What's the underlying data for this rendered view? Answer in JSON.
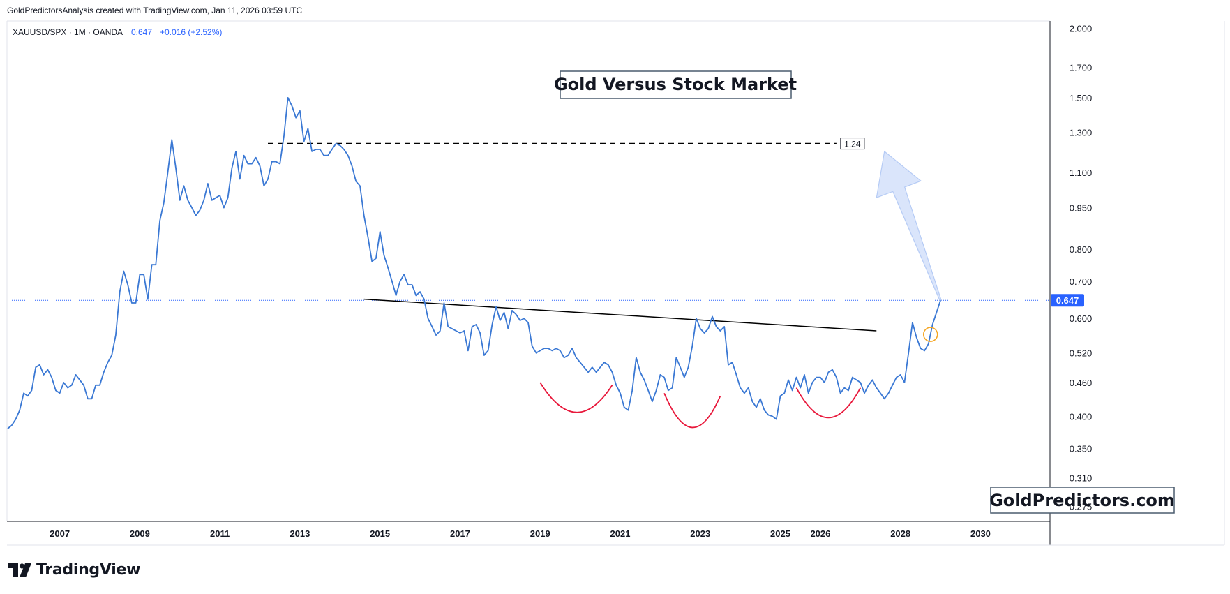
{
  "header": {
    "caption": "GoldPredictorsAnalysis created with TradingView.com, Jan 11, 2026 03:59 UTC"
  },
  "legend": {
    "symbol": "XAUUSD/SPX · 1M · OANDA",
    "last": "0.647",
    "change": "+0.016 (+2.52%)"
  },
  "title_box": "Gold Versus Stock Market",
  "watermark_box": "GoldPredictors.com",
  "footer": {
    "brand": "TradingView"
  },
  "colors": {
    "line": "#3a78d4",
    "neckline": "#000000",
    "arcs": "#e8193c",
    "target_line": "#000000",
    "price_tag": "#2962ff",
    "arrow_fill": "#d6e2fb",
    "arrow_stroke": "#b5cbf5",
    "circle": "#f5a623"
  },
  "chart_data": {
    "type": "line",
    "title": "Gold Versus Stock Market",
    "y_scale": "log",
    "ylim": [
      0.26,
      2.05
    ],
    "xlim": [
      2005.7,
      2031.7
    ],
    "x_ticks": [
      "2007",
      "2009",
      "2011",
      "2013",
      "2015",
      "2017",
      "2019",
      "2021",
      "2023",
      "2025",
      "2026",
      "2028",
      "2030"
    ],
    "x_tick_values": [
      2007,
      2009,
      2011,
      2013,
      2015,
      2017,
      2019,
      2021,
      2023,
      2025,
      2026,
      2028,
      2030
    ],
    "y_ticks": [
      "2.000",
      "1.700",
      "1.500",
      "1.300",
      "1.100",
      "0.950",
      "0.800",
      "0.700",
      "0.600",
      "0.520",
      "0.460",
      "0.400",
      "0.350",
      "0.310",
      "0.275"
    ],
    "y_tick_values": [
      2.0,
      1.7,
      1.5,
      1.3,
      1.1,
      0.95,
      0.8,
      0.7,
      0.6,
      0.52,
      0.46,
      0.4,
      0.35,
      0.31,
      0.275
    ],
    "current_value": 0.647,
    "current_label": "0.647",
    "series": [
      {
        "values": [
          [
            2005.7,
            0.38
          ],
          [
            2005.8,
            0.385
          ],
          [
            2005.9,
            0.395
          ],
          [
            2006.0,
            0.41
          ],
          [
            2006.1,
            0.44
          ],
          [
            2006.2,
            0.435
          ],
          [
            2006.3,
            0.445
          ],
          [
            2006.4,
            0.49
          ],
          [
            2006.5,
            0.495
          ],
          [
            2006.6,
            0.475
          ],
          [
            2006.7,
            0.485
          ],
          [
            2006.8,
            0.47
          ],
          [
            2006.9,
            0.445
          ],
          [
            2007.0,
            0.44
          ],
          [
            2007.1,
            0.46
          ],
          [
            2007.2,
            0.45
          ],
          [
            2007.3,
            0.455
          ],
          [
            2007.4,
            0.475
          ],
          [
            2007.5,
            0.465
          ],
          [
            2007.6,
            0.455
          ],
          [
            2007.7,
            0.43
          ],
          [
            2007.8,
            0.43
          ],
          [
            2007.9,
            0.455
          ],
          [
            2008.0,
            0.455
          ],
          [
            2008.1,
            0.48
          ],
          [
            2008.2,
            0.5
          ],
          [
            2008.3,
            0.515
          ],
          [
            2008.4,
            0.56
          ],
          [
            2008.5,
            0.67
          ],
          [
            2008.6,
            0.73
          ],
          [
            2008.7,
            0.69
          ],
          [
            2008.8,
            0.64
          ],
          [
            2008.9,
            0.64
          ],
          [
            2009.0,
            0.72
          ],
          [
            2009.1,
            0.72
          ],
          [
            2009.2,
            0.65
          ],
          [
            2009.3,
            0.75
          ],
          [
            2009.4,
            0.75
          ],
          [
            2009.5,
            0.9
          ],
          [
            2009.6,
            0.97
          ],
          [
            2009.7,
            1.1
          ],
          [
            2009.8,
            1.26
          ],
          [
            2009.9,
            1.12
          ],
          [
            2010.0,
            0.98
          ],
          [
            2010.1,
            1.04
          ],
          [
            2010.2,
            0.98
          ],
          [
            2010.3,
            0.95
          ],
          [
            2010.4,
            0.92
          ],
          [
            2010.5,
            0.94
          ],
          [
            2010.6,
            0.98
          ],
          [
            2010.7,
            1.05
          ],
          [
            2010.8,
            0.98
          ],
          [
            2010.9,
            0.99
          ],
          [
            2011.0,
            1.0
          ],
          [
            2011.1,
            0.95
          ],
          [
            2011.2,
            0.99
          ],
          [
            2011.3,
            1.12
          ],
          [
            2011.4,
            1.2
          ],
          [
            2011.5,
            1.07
          ],
          [
            2011.6,
            1.18
          ],
          [
            2011.7,
            1.14
          ],
          [
            2011.8,
            1.14
          ],
          [
            2011.9,
            1.17
          ],
          [
            2012.0,
            1.13
          ],
          [
            2012.1,
            1.04
          ],
          [
            2012.2,
            1.07
          ],
          [
            2012.3,
            1.15
          ],
          [
            2012.4,
            1.15
          ],
          [
            2012.5,
            1.14
          ],
          [
            2012.6,
            1.28
          ],
          [
            2012.7,
            1.5
          ],
          [
            2012.8,
            1.45
          ],
          [
            2012.9,
            1.38
          ],
          [
            2013.0,
            1.42
          ],
          [
            2013.1,
            1.25
          ],
          [
            2013.2,
            1.32
          ],
          [
            2013.3,
            1.2
          ],
          [
            2013.4,
            1.21
          ],
          [
            2013.5,
            1.21
          ],
          [
            2013.6,
            1.18
          ],
          [
            2013.7,
            1.18
          ],
          [
            2013.8,
            1.21
          ],
          [
            2013.9,
            1.24
          ],
          [
            2014.0,
            1.23
          ],
          [
            2014.1,
            1.21
          ],
          [
            2014.2,
            1.18
          ],
          [
            2014.3,
            1.13
          ],
          [
            2014.4,
            1.06
          ],
          [
            2014.5,
            1.04
          ],
          [
            2014.6,
            0.92
          ],
          [
            2014.7,
            0.84
          ],
          [
            2014.8,
            0.76
          ],
          [
            2014.9,
            0.77
          ],
          [
            2015.0,
            0.86
          ],
          [
            2015.1,
            0.78
          ],
          [
            2015.2,
            0.74
          ],
          [
            2015.3,
            0.7
          ],
          [
            2015.4,
            0.66
          ],
          [
            2015.5,
            0.7
          ],
          [
            2015.6,
            0.72
          ],
          [
            2015.7,
            0.69
          ],
          [
            2015.8,
            0.69
          ],
          [
            2015.9,
            0.66
          ],
          [
            2016.0,
            0.67
          ],
          [
            2016.1,
            0.65
          ],
          [
            2016.2,
            0.6
          ],
          [
            2016.3,
            0.58
          ],
          [
            2016.4,
            0.56
          ],
          [
            2016.5,
            0.57
          ],
          [
            2016.6,
            0.64
          ],
          [
            2016.7,
            0.58
          ],
          [
            2016.8,
            0.575
          ],
          [
            2016.9,
            0.57
          ],
          [
            2017.0,
            0.565
          ],
          [
            2017.1,
            0.57
          ],
          [
            2017.2,
            0.525
          ],
          [
            2017.3,
            0.58
          ],
          [
            2017.4,
            0.585
          ],
          [
            2017.5,
            0.565
          ],
          [
            2017.6,
            0.515
          ],
          [
            2017.7,
            0.525
          ],
          [
            2017.8,
            0.585
          ],
          [
            2017.9,
            0.63
          ],
          [
            2018.0,
            0.595
          ],
          [
            2018.1,
            0.615
          ],
          [
            2018.2,
            0.575
          ],
          [
            2018.3,
            0.62
          ],
          [
            2018.4,
            0.61
          ],
          [
            2018.5,
            0.595
          ],
          [
            2018.6,
            0.6
          ],
          [
            2018.7,
            0.59
          ],
          [
            2018.8,
            0.535
          ],
          [
            2018.9,
            0.52
          ],
          [
            2019.0,
            0.525
          ],
          [
            2019.1,
            0.53
          ],
          [
            2019.2,
            0.53
          ],
          [
            2019.3,
            0.525
          ],
          [
            2019.4,
            0.53
          ],
          [
            2019.5,
            0.525
          ],
          [
            2019.6,
            0.51
          ],
          [
            2019.7,
            0.515
          ],
          [
            2019.8,
            0.53
          ],
          [
            2019.9,
            0.51
          ],
          [
            2020.0,
            0.5
          ],
          [
            2020.1,
            0.49
          ],
          [
            2020.2,
            0.48
          ],
          [
            2020.3,
            0.49
          ],
          [
            2020.4,
            0.48
          ],
          [
            2020.5,
            0.49
          ],
          [
            2020.6,
            0.5
          ],
          [
            2020.7,
            0.495
          ],
          [
            2020.8,
            0.48
          ],
          [
            2020.9,
            0.455
          ],
          [
            2021.0,
            0.44
          ],
          [
            2021.1,
            0.415
          ],
          [
            2021.2,
            0.41
          ],
          [
            2021.3,
            0.445
          ],
          [
            2021.4,
            0.51
          ],
          [
            2021.5,
            0.48
          ],
          [
            2021.6,
            0.465
          ],
          [
            2021.7,
            0.445
          ],
          [
            2021.8,
            0.425
          ],
          [
            2021.9,
            0.445
          ],
          [
            2022.0,
            0.475
          ],
          [
            2022.1,
            0.47
          ],
          [
            2022.2,
            0.445
          ],
          [
            2022.3,
            0.45
          ],
          [
            2022.4,
            0.51
          ],
          [
            2022.5,
            0.49
          ],
          [
            2022.6,
            0.47
          ],
          [
            2022.7,
            0.49
          ],
          [
            2022.8,
            0.535
          ],
          [
            2022.9,
            0.6
          ],
          [
            2023.0,
            0.575
          ],
          [
            2023.1,
            0.565
          ],
          [
            2023.2,
            0.575
          ],
          [
            2023.3,
            0.605
          ],
          [
            2023.4,
            0.58
          ],
          [
            2023.5,
            0.57
          ],
          [
            2023.6,
            0.58
          ],
          [
            2023.7,
            0.495
          ],
          [
            2023.8,
            0.5
          ],
          [
            2023.9,
            0.475
          ],
          [
            2024.0,
            0.45
          ],
          [
            2024.1,
            0.44
          ],
          [
            2024.2,
            0.45
          ],
          [
            2024.3,
            0.425
          ],
          [
            2024.4,
            0.415
          ],
          [
            2024.5,
            0.43
          ],
          [
            2024.6,
            0.41
          ],
          [
            2024.7,
            0.402
          ],
          [
            2024.8,
            0.4
          ],
          [
            2024.9,
            0.395
          ],
          [
            2025.0,
            0.435
          ],
          [
            2025.1,
            0.44
          ],
          [
            2025.2,
            0.465
          ],
          [
            2025.3,
            0.445
          ],
          [
            2025.4,
            0.47
          ],
          [
            2025.5,
            0.45
          ],
          [
            2025.6,
            0.475
          ],
          [
            2025.7,
            0.44
          ],
          [
            2025.8,
            0.46
          ],
          [
            2025.9,
            0.47
          ],
          [
            2026.0,
            0.47
          ],
          [
            2026.1,
            0.46
          ],
          [
            2026.2,
            0.48
          ],
          [
            2026.3,
            0.485
          ],
          [
            2026.4,
            0.47
          ],
          [
            2026.5,
            0.44
          ],
          [
            2026.6,
            0.45
          ],
          [
            2026.7,
            0.445
          ],
          [
            2026.8,
            0.47
          ],
          [
            2026.9,
            0.465
          ],
          [
            2027.0,
            0.46
          ],
          [
            2027.1,
            0.44
          ],
          [
            2027.2,
            0.455
          ],
          [
            2027.3,
            0.465
          ],
          [
            2027.4,
            0.45
          ],
          [
            2027.5,
            0.44
          ],
          [
            2027.6,
            0.43
          ],
          [
            2027.7,
            0.44
          ],
          [
            2027.8,
            0.455
          ],
          [
            2027.9,
            0.47
          ],
          [
            2028.0,
            0.475
          ],
          [
            2028.1,
            0.46
          ],
          [
            2028.2,
            0.52
          ],
          [
            2028.3,
            0.59
          ],
          [
            2028.4,
            0.555
          ],
          [
            2028.5,
            0.53
          ],
          [
            2028.6,
            0.525
          ],
          [
            2028.7,
            0.54
          ],
          [
            2028.8,
            0.585
          ],
          [
            2028.9,
            0.615
          ],
          [
            2029.0,
            0.647
          ]
        ]
      }
    ],
    "annotations": {
      "neckline": [
        [
          2014.6,
          0.65
        ],
        [
          2027.4,
          0.57
        ]
      ],
      "target": {
        "value": 1.24,
        "label": "1.24",
        "x_start": 2012.2,
        "x_end": 2026.4
      }
    }
  }
}
